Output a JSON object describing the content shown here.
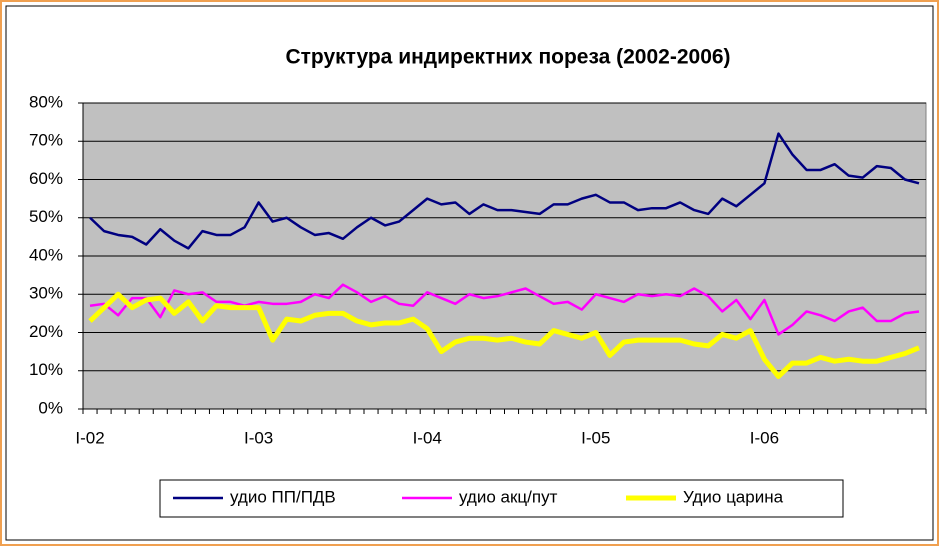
{
  "chart_data": {
    "type": "line",
    "title": "Структура индиректних пореза (2002-2006)",
    "categories": [
      "I-02",
      null,
      null,
      null,
      null,
      null,
      null,
      null,
      null,
      null,
      null,
      null,
      "I-03",
      null,
      null,
      null,
      null,
      null,
      null,
      null,
      null,
      null,
      null,
      null,
      "I-04",
      null,
      null,
      null,
      null,
      null,
      null,
      null,
      null,
      null,
      null,
      null,
      "I-05",
      null,
      null,
      null,
      null,
      null,
      null,
      null,
      null,
      null,
      null,
      null,
      "I-06",
      null,
      null,
      null,
      null,
      null,
      null,
      null,
      null,
      null,
      null,
      null
    ],
    "ylim": [
      0,
      80
    ],
    "yticks": [
      {
        "value": 0,
        "label": "0%"
      },
      {
        "value": 10,
        "label": "10%"
      },
      {
        "value": 20,
        "label": "20%"
      },
      {
        "value": 30,
        "label": "30%"
      },
      {
        "value": 40,
        "label": "40%"
      },
      {
        "value": 50,
        "label": "50%"
      },
      {
        "value": 60,
        "label": "60%"
      },
      {
        "value": 70,
        "label": "70%"
      },
      {
        "value": 80,
        "label": "80%"
      }
    ],
    "grid": true,
    "legend": "bottom",
    "series": [
      {
        "name": "удио ПП/ПДВ",
        "color": "#000080",
        "width": 2.5,
        "values": [
          50,
          46.5,
          45.5,
          45,
          43,
          47,
          44,
          42,
          46.5,
          45.5,
          45.5,
          47.5,
          54,
          49,
          50,
          47.5,
          45.5,
          46,
          44.5,
          47.5,
          50,
          48,
          49,
          52,
          55,
          53.5,
          54,
          51,
          53.5,
          52,
          52,
          51.5,
          51,
          53.5,
          53.5,
          55,
          56,
          54,
          54,
          52,
          52.5,
          52.5,
          54,
          52,
          51,
          55,
          53,
          56,
          59,
          72,
          66.5,
          62.5,
          62.5,
          64,
          61,
          60.5,
          63.5,
          63,
          60,
          59
        ]
      },
      {
        "name": "удио акц/пут",
        "color": "#ff00ff",
        "width": 2.5,
        "values": [
          27,
          27.5,
          24.5,
          29,
          29,
          24,
          31,
          30,
          30.5,
          28,
          28,
          27,
          28,
          27.5,
          27.5,
          28,
          30,
          29,
          32.5,
          30.5,
          28,
          29.5,
          27.5,
          27,
          30.5,
          29,
          27.5,
          30,
          29,
          29.5,
          30.5,
          31.5,
          29.5,
          27.5,
          28,
          26,
          30,
          29,
          28,
          30,
          29.5,
          30,
          29.5,
          31.5,
          29.5,
          25.5,
          28.5,
          23.5,
          28.5,
          19.5,
          22,
          25.5,
          24.5,
          23,
          25.5,
          26.5,
          23,
          23,
          25,
          25.5
        ]
      },
      {
        "name": "Удио царина",
        "color": "#ffff00",
        "width": 5,
        "values": [
          23,
          26.5,
          30,
          26.5,
          28.5,
          29,
          25,
          28,
          23,
          27,
          26.5,
          26.5,
          26.5,
          18,
          23.5,
          23,
          24.5,
          25,
          25,
          23,
          22,
          22.5,
          22.5,
          23.5,
          21,
          15,
          17.5,
          18.5,
          18.5,
          18,
          18.5,
          17.5,
          17,
          20.5,
          19.5,
          18.5,
          20,
          14,
          17.5,
          18,
          18,
          18,
          18,
          17,
          16.5,
          19.5,
          18.5,
          20.5,
          13,
          8.5,
          12,
          12,
          13.5,
          12.5,
          13,
          12.5,
          12.5,
          13.5,
          14.5,
          16
        ]
      }
    ]
  }
}
